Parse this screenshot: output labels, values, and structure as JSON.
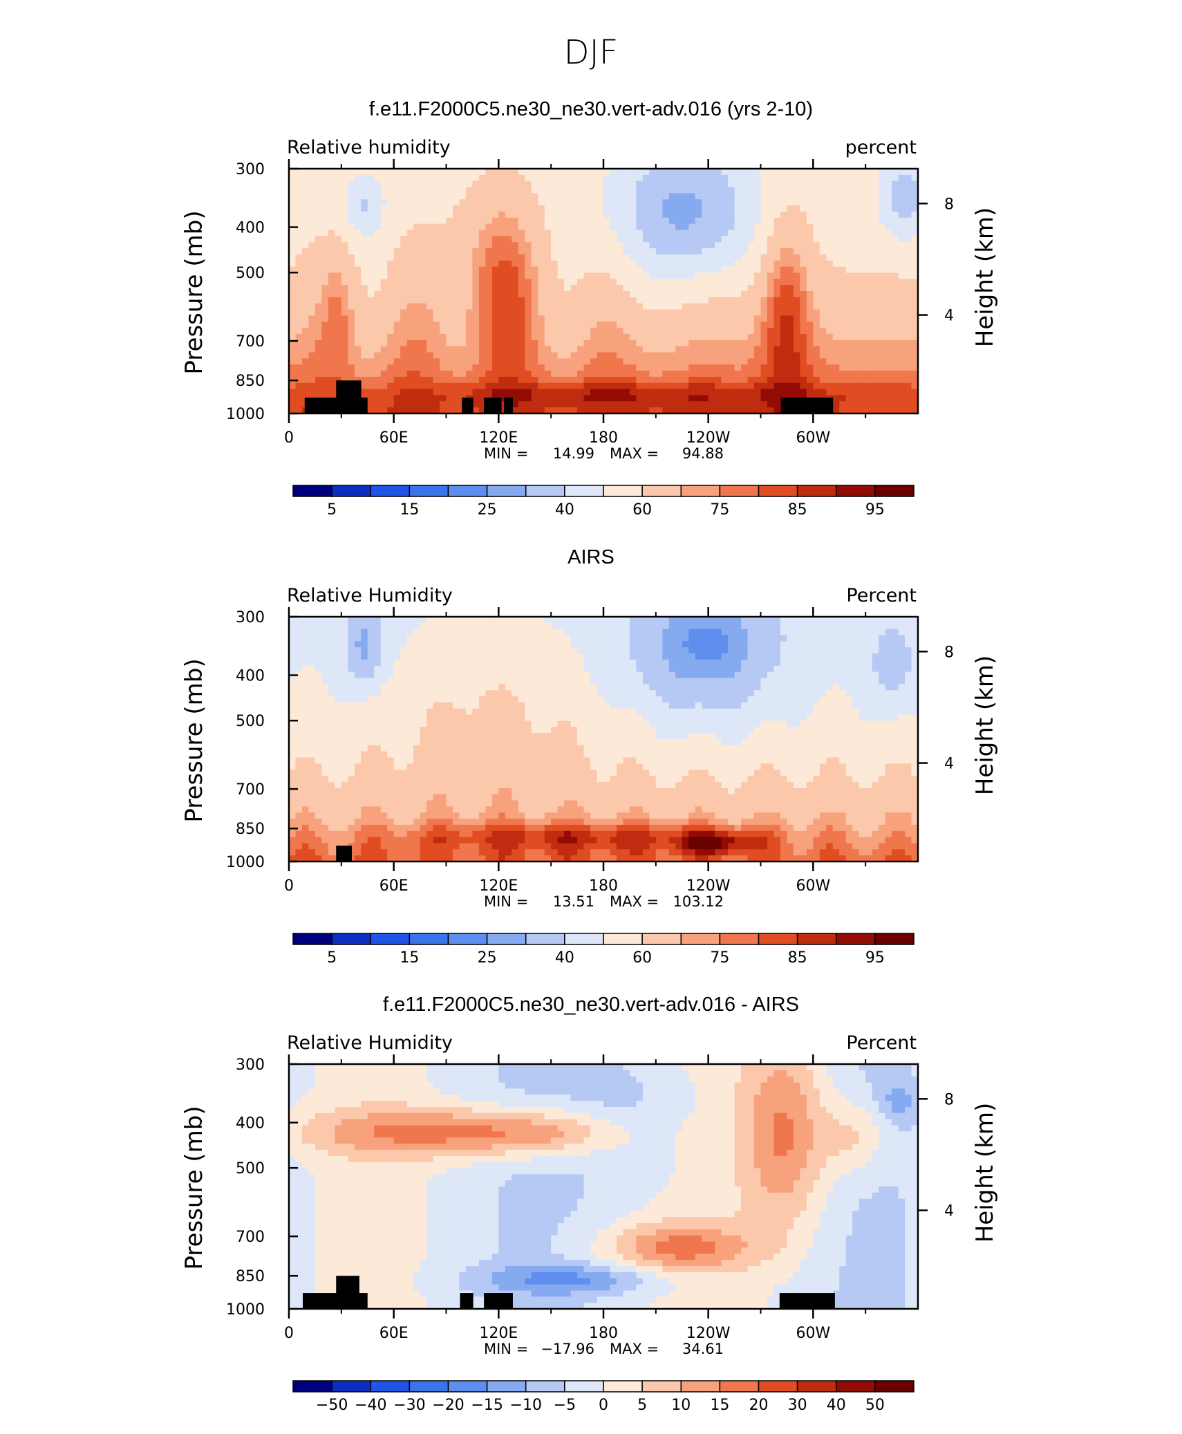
{
  "figure": {
    "title": "DJF"
  },
  "chart_data": [
    {
      "type": "heatmap",
      "title": "f.e11.F2000C5.ne30_ne30.vert-adv.016 (yrs 2-10)",
      "left_label": "Relative humidity",
      "right_label": "percent",
      "ylabel": "Pressure (mb)",
      "ylabel_right": "Height (km)",
      "x_ticks": [
        "0",
        "60E",
        "120E",
        "180",
        "120W",
        "60W"
      ],
      "y_ticks": [
        "300",
        "400",
        "500",
        "700",
        "850",
        "1000"
      ],
      "y2_ticks": [
        "8",
        "4"
      ],
      "stats": {
        "min_label": "MIN =",
        "min": "14.99",
        "max_label": "MAX =",
        "max": "94.88"
      },
      "colorbar_labels": [
        "5",
        "15",
        "25",
        "40",
        "60",
        "75",
        "85",
        "95"
      ]
    },
    {
      "type": "heatmap",
      "title": "AIRS",
      "left_label": "Relative Humidity",
      "right_label": "Percent",
      "ylabel": "Pressure (mb)",
      "ylabel_right": "Height (km)",
      "x_ticks": [
        "0",
        "60E",
        "120E",
        "180",
        "120W",
        "60W"
      ],
      "y_ticks": [
        "300",
        "400",
        "500",
        "700",
        "850",
        "1000"
      ],
      "y2_ticks": [
        "8",
        "4"
      ],
      "stats": {
        "min_label": "MIN =",
        "min": "13.51",
        "max_label": "MAX =",
        "max": "103.12"
      },
      "colorbar_labels": [
        "5",
        "15",
        "25",
        "40",
        "60",
        "75",
        "85",
        "95"
      ]
    },
    {
      "type": "heatmap",
      "title": "f.e11.F2000C5.ne30_ne30.vert-adv.016 - AIRS",
      "left_label": "Relative Humidity",
      "right_label": "Percent",
      "ylabel": "Pressure (mb)",
      "ylabel_right": "Height (km)",
      "x_ticks": [
        "0",
        "60E",
        "120E",
        "180",
        "120W",
        "60W"
      ],
      "y_ticks": [
        "300",
        "400",
        "500",
        "700",
        "850",
        "1000"
      ],
      "y2_ticks": [
        "8",
        "4"
      ],
      "stats": {
        "min_label": "MIN =",
        "min": "−17.96",
        "max_label": "MAX =",
        "max": "34.61"
      },
      "colorbar_labels": [
        "−50",
        "−40",
        "−30",
        "−20",
        "−15",
        "−10",
        "−5",
        "0",
        "5",
        "10",
        "15",
        "20",
        "30",
        "40",
        "50"
      ]
    }
  ],
  "colorbar_colors": [
    "#00007f",
    "#0d2fbf",
    "#1f54e6",
    "#3b73ea",
    "#5f8fee",
    "#86aaf0",
    "#b5c9f4",
    "#dde7f8",
    "#fde9d8",
    "#fbc8ab",
    "#f7a27c",
    "#f0764d",
    "#e04d22",
    "#c02c0f",
    "#930b05",
    "#6b0000"
  ]
}
